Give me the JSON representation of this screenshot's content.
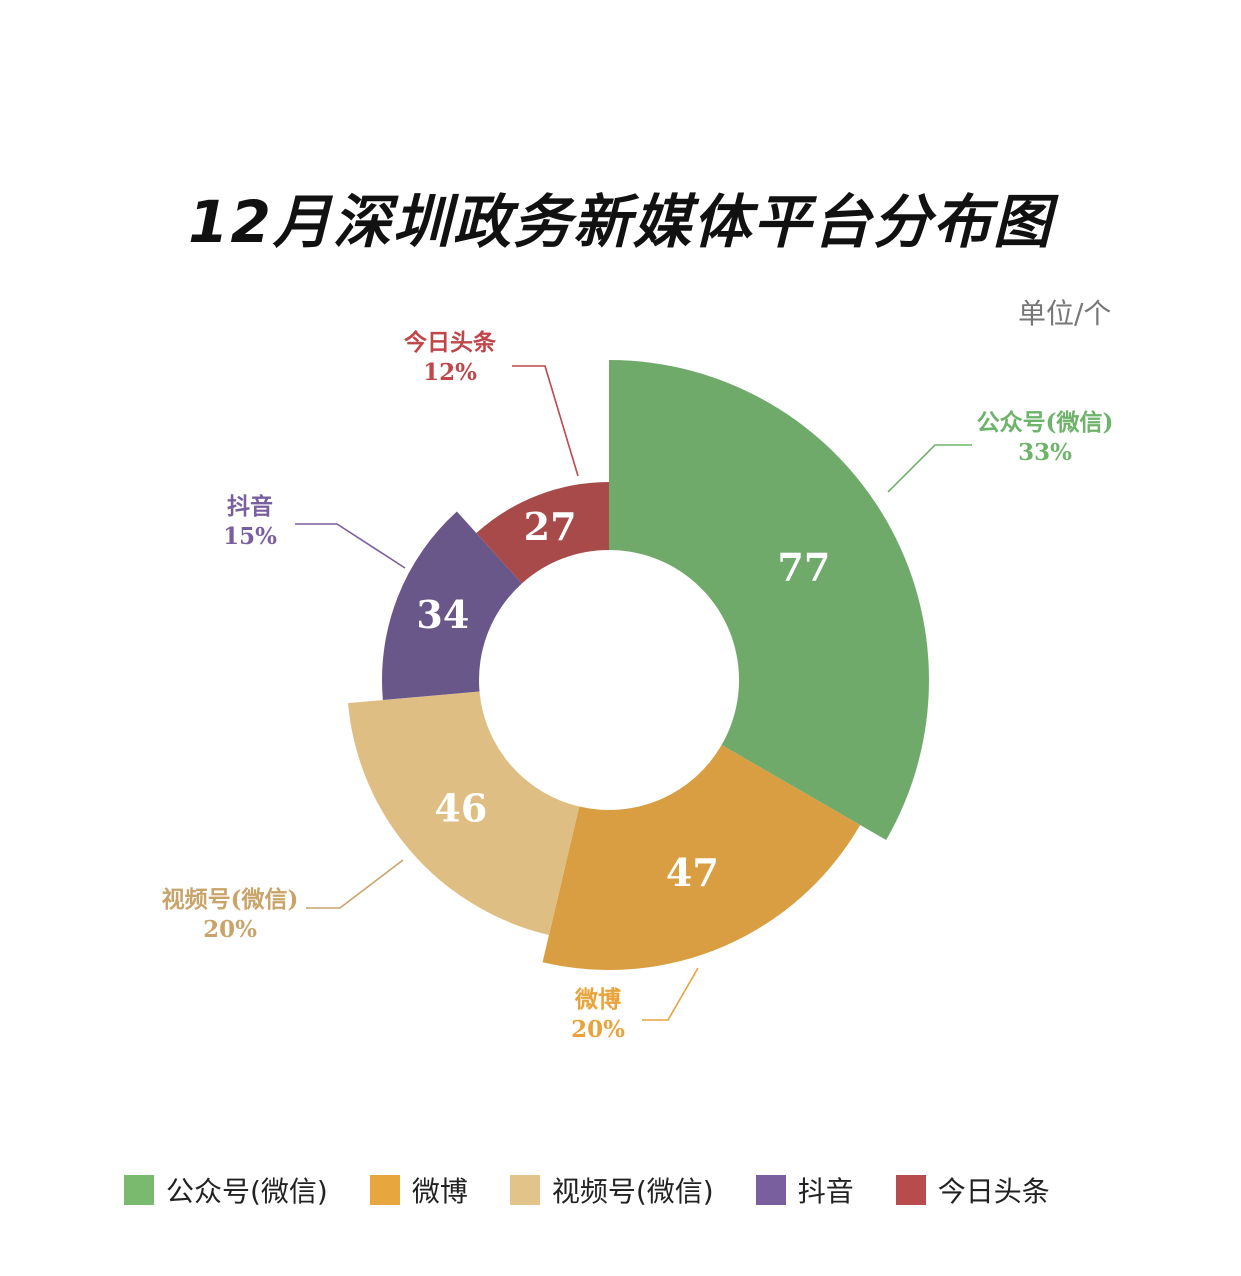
{
  "title": "12月深圳政务新媒体平台分布图",
  "unit": "单位/个",
  "chart_data": {
    "type": "pie",
    "variant": "rose-donut",
    "title": "12月深圳政务新媒体平台分布图",
    "categories": [
      "公众号(微信)",
      "微博",
      "视频号(微信)",
      "抖音",
      "今日头条"
    ],
    "values": [
      77,
      47,
      46,
      34,
      27
    ],
    "percent_labels": [
      "33%",
      "20%",
      "20%",
      "15%",
      "12%"
    ],
    "slice_colors": [
      "#70AA6B",
      "#D99E42",
      "#DFBE84",
      "#6A578A",
      "#A84A4A"
    ],
    "label_colors": [
      "#6DB36A",
      "#E8A33A",
      "#C9A46A",
      "#7A5F9E",
      "#C0464A"
    ],
    "legend_colors": [
      "#7ABA6E",
      "#E8A73E",
      "#E2C38A",
      "#7A5F9E",
      "#B84C4C"
    ],
    "legend_position": "bottom"
  }
}
